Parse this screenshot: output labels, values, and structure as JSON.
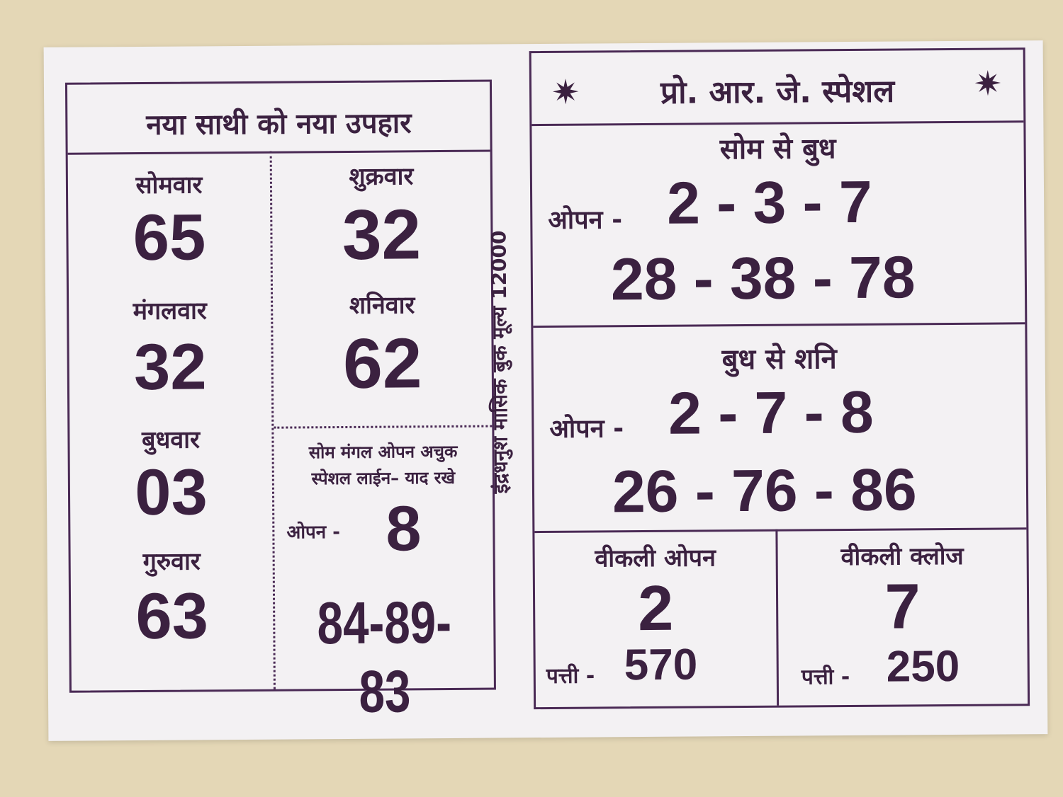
{
  "left": {
    "title": "नया साथी को नया उपहार",
    "days": [
      {
        "label": "सोमवार",
        "value": "65"
      },
      {
        "label": "मंगलवार",
        "value": "32"
      },
      {
        "label": "बुधवार",
        "value": "03"
      },
      {
        "label": "गुरुवार",
        "value": "63"
      },
      {
        "label": "शुक्रवार",
        "value": "32"
      },
      {
        "label": "शनिवार",
        "value": "62"
      }
    ],
    "special_line1": "सोम मंगल ओपन अचुक",
    "special_line2": "स्पेशल लाईन– याद रखे",
    "open_label": "ओपन -",
    "open_value": "8",
    "panel": "84-89-83"
  },
  "side_text": "इंद्रधनुश मासिक बुक मूल्य 12000",
  "right": {
    "title": "प्रो. आर. जे. स्पेशल",
    "sections": [
      {
        "heading": "सोम से बुध",
        "open_label": "ओपन -",
        "open": "2 - 3 - 7",
        "jodi": "28 - 38 - 78"
      },
      {
        "heading": "बुध से शनि",
        "open_label": "ओपन -",
        "open": "2 - 7 - 8",
        "jodi": "26 - 76 - 86"
      }
    ],
    "weekly": [
      {
        "heading": "वीकली ओपन",
        "value": "2",
        "patti_label": "पत्ती -",
        "patti": "570"
      },
      {
        "heading": "वीकली क्लोज",
        "value": "7",
        "patti_label": "पत्ती -",
        "patti": "250"
      }
    ]
  }
}
